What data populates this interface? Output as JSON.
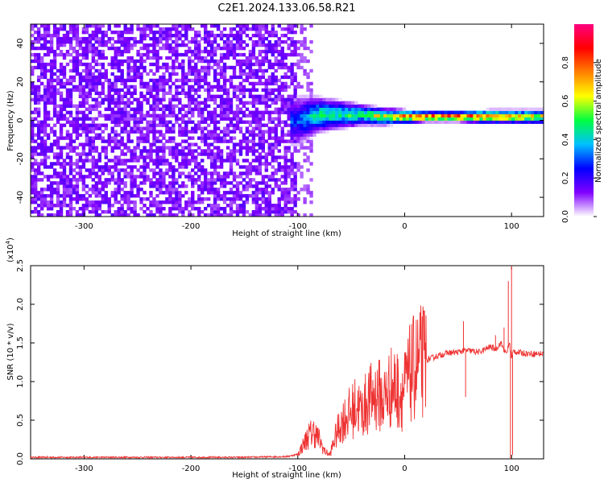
{
  "title": "C2E1.2024.133.06.58.R21",
  "chart_data": [
    {
      "type": "heatmap",
      "xlabel": "Height of straight line (km)",
      "ylabel": "Frequency (Hz)",
      "xlim": [
        -350,
        130
      ],
      "ylim": [
        -50,
        50
      ],
      "xticks": [
        "-300",
        "-200",
        "-100",
        "0",
        "100"
      ],
      "xtick_values": [
        -300,
        -200,
        -100,
        0,
        100
      ],
      "yticks": [
        "-40",
        "-20",
        "0",
        "20",
        "40"
      ],
      "ytick_values": [
        -40,
        -20,
        0,
        20,
        40
      ],
      "colorbar": {
        "label": "Normalized spectral amplitude",
        "range": [
          0,
          1
        ],
        "ticks": [
          "0.0",
          "0.2",
          "0.4",
          "0.6",
          "0.8"
        ],
        "tick_values": [
          0,
          0.2,
          0.4,
          0.6,
          0.8
        ],
        "colormap": [
          "#ffffff",
          "#8000ff",
          "#0000ff",
          "#00c0ff",
          "#00ff40",
          "#ffff00",
          "#ff8000",
          "#ff0000",
          "#ff0080"
        ]
      },
      "noise_region": {
        "x_range": [
          -350,
          -100
        ],
        "frequency_range": [
          -50,
          50
        ],
        "amplitude": 0.1
      },
      "signal_band": [
        {
          "x": -100,
          "center": 0,
          "width": 14,
          "amplitude": 0.3
        },
        {
          "x": -80,
          "center": 3,
          "width": 10,
          "amplitude": 0.5
        },
        {
          "x": -60,
          "center": 3,
          "width": 8,
          "amplitude": 0.5
        },
        {
          "x": -40,
          "center": 3,
          "width": 6,
          "amplitude": 0.55
        },
        {
          "x": -20,
          "center": 2,
          "width": 5,
          "amplitude": 0.65
        },
        {
          "x": 0,
          "center": 2,
          "width": 4,
          "amplitude": 0.8
        },
        {
          "x": 20,
          "center": 2,
          "width": 3,
          "amplitude": 0.9
        },
        {
          "x": 50,
          "center": 2,
          "width": 3,
          "amplitude": 0.9
        },
        {
          "x": 80,
          "center": 2,
          "width": 4,
          "amplitude": 0.8
        },
        {
          "x": 100,
          "center": 2,
          "width": 4,
          "amplitude": 0.75
        },
        {
          "x": 130,
          "center": 2,
          "width": 4,
          "amplitude": 0.7
        }
      ]
    },
    {
      "type": "line",
      "xlabel": "Height of straight line (km)",
      "ylabel": "SNR (10 * v/v)",
      "y_multiplier": "(x10",
      "y_multiplier_exp": "4",
      "y_multiplier_close": ")",
      "xlim": [
        -350,
        130
      ],
      "ylim": [
        0,
        2.5
      ],
      "xticks": [
        "-300",
        "-200",
        "-100",
        "0",
        "100"
      ],
      "xtick_values": [
        -300,
        -200,
        -100,
        0,
        100
      ],
      "yticks": [
        "0.0",
        "0.5",
        "1.0",
        "1.5",
        "2.0",
        "2.5"
      ],
      "ytick_values": [
        0,
        0.5,
        1.0,
        1.5,
        2.0,
        2.5
      ],
      "color": "#ee3333",
      "series": [
        {
          "x": [
            -350,
            -300,
            -250,
            -200,
            -150,
            -110,
            -100,
            -95,
            -90,
            -85,
            -80,
            -75,
            -70,
            -65,
            -60,
            -55,
            -50,
            -45,
            -40,
            -35,
            -30,
            -25,
            -20,
            -15,
            -10,
            -5,
            0,
            5,
            10,
            15,
            20,
            25,
            30,
            40,
            50,
            55,
            60,
            70,
            80,
            85,
            90,
            95,
            98,
            100,
            102,
            105,
            110,
            120,
            130
          ],
          "y": [
            0.02,
            0.02,
            0.02,
            0.02,
            0.02,
            0.03,
            0.06,
            0.18,
            0.3,
            0.35,
            0.25,
            0.1,
            0.05,
            0.28,
            0.45,
            0.55,
            0.6,
            0.7,
            0.6,
            0.75,
            0.8,
            0.85,
            0.75,
            0.9,
            0.95,
            0.85,
            0.9,
            1.1,
            1.2,
            1.25,
            1.28,
            1.3,
            1.33,
            1.37,
            1.38,
            1.4,
            1.4,
            1.38,
            1.45,
            1.42,
            1.5,
            1.35,
            1.5,
            1.3,
            1.4,
            1.38,
            1.37,
            1.36,
            1.36
          ]
        }
      ],
      "spikes": [
        {
          "x": 55,
          "y": 1.78
        },
        {
          "x": 57,
          "y": 0.8
        },
        {
          "x": 85,
          "y": 1.6
        },
        {
          "x": 93,
          "y": 1.7
        },
        {
          "x": 97,
          "y": 2.3
        },
        {
          "x": 99,
          "y": 0.0
        },
        {
          "x": 100,
          "y": 2.5
        },
        {
          "x": 101,
          "y": 0.05
        }
      ]
    }
  ]
}
